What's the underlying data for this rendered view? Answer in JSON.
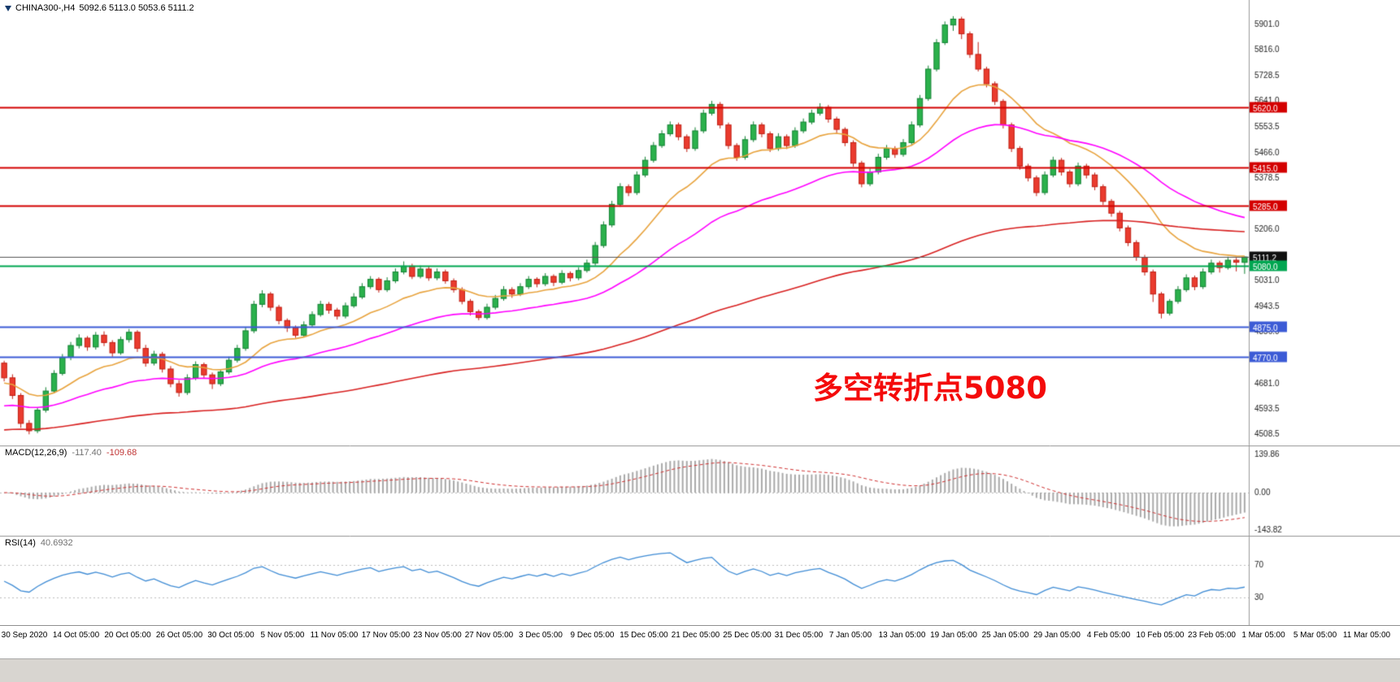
{
  "header": {
    "symbol_period": "CHINA300-,H4",
    "ohlc": "5092.6 5113.0 5053.6 5111.2"
  },
  "main": {
    "annotation_text": "多空转折点5080",
    "annotation_color": "#f40b0b"
  },
  "macd": {
    "label": "MACD(12,26,9)",
    "value_main": "-117.40",
    "value_signal": "-109.68",
    "ticks": [
      "139.86",
      "0.00",
      "-143.82"
    ]
  },
  "rsi": {
    "label": "RSI(14)",
    "value": "40.6932",
    "levels": [
      70,
      30
    ]
  },
  "time_axis": {
    "labels": [
      "30 Sep 2020",
      "14 Oct 05:00",
      "20 Oct 05:00",
      "26 Oct 05:00",
      "30 Oct 05:00",
      "5 Nov 05:00",
      "11 Nov 05:00",
      "17 Nov 05:00",
      "23 Nov 05:00",
      "27 Nov 05:00",
      "3 Dec 05:00",
      "9 Dec 05:00",
      "15 Dec 05:00",
      "21 Dec 05:00",
      "25 Dec 05:00",
      "31 Dec 05:00",
      "7 Jan 05:00",
      "13 Jan 05:00",
      "19 Jan 05:00",
      "25 Jan 05:00",
      "29 Jan 05:00",
      "4 Feb 05:00",
      "10 Feb 05:00",
      "23 Feb 05:00",
      "1 Mar 05:00",
      "5 Mar 05:00",
      "11 Mar 05:00"
    ]
  },
  "chart_data": {
    "type": "candlestick",
    "title": "CHINA300-,H4",
    "timeframe": "H4",
    "x_start": "30 Sep 2020",
    "x_end": "11 Mar 05:00",
    "ylim": [
      4470,
      5985
    ],
    "y_ticks": [
      5901.0,
      5816.0,
      5728.5,
      5641.0,
      5553.5,
      5466.0,
      5378.5,
      5206.0,
      5031.0,
      4943.5,
      4856.0,
      4681.0,
      4593.5,
      4508.5
    ],
    "levels": [
      {
        "price": 5620.0,
        "label": "5620.0",
        "color": "#d40000",
        "badge": "#d40000",
        "width": 2
      },
      {
        "price": 5415.0,
        "label": "5415.0",
        "color": "#d40000",
        "badge": "#d40000",
        "width": 2
      },
      {
        "price": 5285.0,
        "label": "5285.0",
        "color": "#d40000",
        "badge": "#d40000",
        "width": 2
      },
      {
        "price": 5111.2,
        "label": "5111.2",
        "color": "#555555",
        "badge": "#101010",
        "width": 1
      },
      {
        "price": 5080.0,
        "label": "5080.0",
        "color": "#00a651",
        "badge": "#00a651",
        "width": 2
      },
      {
        "price": 4875.0,
        "label": "4875.0",
        "color": "#3c5bd6",
        "badge": "#3c5bd6",
        "width": 2
      },
      {
        "price": 4770.0,
        "label": "4770.0",
        "color": "#3c5bd6",
        "badge": "#3c5bd6",
        "width": 2
      }
    ],
    "colors": {
      "up": "#2bb14c",
      "up_border": "#128233",
      "down": "#ea3b2e",
      "down_border": "#c01d12",
      "macd_hist": "#a9a9a9",
      "macd_signal": "#d03030",
      "rsi_line": "#3f8cd5",
      "axis_sep": "#9a9a9a"
    },
    "overlays": [
      {
        "name": "ma-fast",
        "period": 16,
        "seed": 4680,
        "color": "#e8a33d"
      },
      {
        "name": "ma-mid",
        "period": 40,
        "seed": 4600,
        "color": "#ff00ff"
      },
      {
        "name": "ma-slow",
        "period": 130,
        "seed": 4520,
        "color": "#d82020"
      }
    ],
    "indicators": [
      {
        "type": "MACD",
        "params": [
          12,
          26,
          9
        ],
        "display": "-117.40 -109.68",
        "ylim": [
          -143.82,
          139.86
        ]
      },
      {
        "type": "RSI",
        "params": [
          14
        ],
        "display": "40.6932",
        "levels": [
          30,
          70
        ]
      }
    ],
    "candles": [
      [
        4750,
        4758,
        4688,
        4700
      ],
      [
        4700,
        4712,
        4628,
        4640
      ],
      [
        4640,
        4648,
        4530,
        4545
      ],
      [
        4545,
        4556,
        4508,
        4520
      ],
      [
        4520,
        4598,
        4512,
        4590
      ],
      [
        4590,
        4668,
        4582,
        4655
      ],
      [
        4655,
        4726,
        4648,
        4715
      ],
      [
        4715,
        4781,
        4708,
        4770
      ],
      [
        4770,
        4822,
        4760,
        4810
      ],
      [
        4810,
        4848,
        4800,
        4835
      ],
      [
        4835,
        4842,
        4792,
        4805
      ],
      [
        4805,
        4856,
        4796,
        4845
      ],
      [
        4845,
        4858,
        4808,
        4820
      ],
      [
        4820,
        4828,
        4772,
        4785
      ],
      [
        4785,
        4840,
        4778,
        4830
      ],
      [
        4830,
        4866,
        4820,
        4855
      ],
      [
        4855,
        4862,
        4788,
        4800
      ],
      [
        4800,
        4812,
        4738,
        4750
      ],
      [
        4750,
        4792,
        4742,
        4780
      ],
      [
        4780,
        4788,
        4718,
        4730
      ],
      [
        4730,
        4740,
        4668,
        4680
      ],
      [
        4680,
        4692,
        4636,
        4650
      ],
      [
        4650,
        4712,
        4642,
        4700
      ],
      [
        4700,
        4756,
        4692,
        4745
      ],
      [
        4745,
        4752,
        4698,
        4710
      ],
      [
        4710,
        4718,
        4662,
        4680
      ],
      [
        4680,
        4730,
        4672,
        4720
      ],
      [
        4720,
        4772,
        4712,
        4760
      ],
      [
        4760,
        4812,
        4752,
        4800
      ],
      [
        4800,
        4872,
        4792,
        4860
      ],
      [
        4860,
        4962,
        4852,
        4950
      ],
      [
        4950,
        4998,
        4940,
        4985
      ],
      [
        4985,
        4992,
        4928,
        4940
      ],
      [
        4940,
        4948,
        4882,
        4895
      ],
      [
        4895,
        4902,
        4856,
        4870
      ],
      [
        4870,
        4878,
        4836,
        4845
      ],
      [
        4845,
        4892,
        4838,
        4880
      ],
      [
        4880,
        4926,
        4872,
        4915
      ],
      [
        4915,
        4962,
        4908,
        4950
      ],
      [
        4950,
        4958,
        4918,
        4930
      ],
      [
        4930,
        4938,
        4898,
        4910
      ],
      [
        4910,
        4956,
        4902,
        4945
      ],
      [
        4945,
        4988,
        4938,
        4975
      ],
      [
        4975,
        5022,
        4968,
        5010
      ],
      [
        5010,
        5046,
        5002,
        5035
      ],
      [
        5035,
        5042,
        4990,
        5000
      ],
      [
        5000,
        5042,
        4992,
        5030
      ],
      [
        5030,
        5072,
        5022,
        5060
      ],
      [
        5060,
        5096,
        5052,
        5080
      ],
      [
        5080,
        5088,
        5036,
        5045
      ],
      [
        5045,
        5082,
        5038,
        5070
      ],
      [
        5070,
        5078,
        5030,
        5040
      ],
      [
        5040,
        5072,
        5032,
        5060
      ],
      [
        5060,
        5068,
        5020,
        5030
      ],
      [
        5030,
        5038,
        4990,
        5000
      ],
      [
        5000,
        5008,
        4950,
        4960
      ],
      [
        4960,
        4968,
        4912,
        4925
      ],
      [
        4925,
        4932,
        4896,
        4905
      ],
      [
        4905,
        4952,
        4898,
        4940
      ],
      [
        4940,
        4982,
        4932,
        4970
      ],
      [
        4970,
        5012,
        4962,
        5000
      ],
      [
        5000,
        5008,
        4972,
        4985
      ],
      [
        4985,
        5022,
        4978,
        5010
      ],
      [
        5010,
        5046,
        5002,
        5035
      ],
      [
        5035,
        5042,
        5008,
        5020
      ],
      [
        5020,
        5056,
        5012,
        5045
      ],
      [
        5045,
        5052,
        5012,
        5025
      ],
      [
        5025,
        5066,
        5018,
        5055
      ],
      [
        5055,
        5062,
        5028,
        5040
      ],
      [
        5040,
        5076,
        5032,
        5065
      ],
      [
        5065,
        5102,
        5058,
        5090
      ],
      [
        5090,
        5162,
        5082,
        5150
      ],
      [
        5150,
        5232,
        5142,
        5220
      ],
      [
        5220,
        5302,
        5212,
        5290
      ],
      [
        5290,
        5362,
        5282,
        5350
      ],
      [
        5350,
        5358,
        5318,
        5330
      ],
      [
        5330,
        5402,
        5322,
        5390
      ],
      [
        5390,
        5452,
        5382,
        5440
      ],
      [
        5440,
        5502,
        5432,
        5490
      ],
      [
        5490,
        5542,
        5482,
        5530
      ],
      [
        5530,
        5572,
        5522,
        5560
      ],
      [
        5560,
        5568,
        5508,
        5520
      ],
      [
        5520,
        5528,
        5468,
        5480
      ],
      [
        5480,
        5552,
        5472,
        5540
      ],
      [
        5540,
        5612,
        5532,
        5600
      ],
      [
        5600,
        5642,
        5592,
        5630
      ],
      [
        5630,
        5638,
        5548,
        5560
      ],
      [
        5560,
        5568,
        5478,
        5490
      ],
      [
        5490,
        5498,
        5438,
        5450
      ],
      [
        5450,
        5522,
        5442,
        5510
      ],
      [
        5510,
        5572,
        5502,
        5560
      ],
      [
        5560,
        5568,
        5518,
        5530
      ],
      [
        5530,
        5538,
        5468,
        5480
      ],
      [
        5480,
        5532,
        5472,
        5520
      ],
      [
        5520,
        5528,
        5478,
        5490
      ],
      [
        5490,
        5552,
        5482,
        5540
      ],
      [
        5540,
        5582,
        5532,
        5570
      ],
      [
        5570,
        5612,
        5562,
        5600
      ],
      [
        5600,
        5634,
        5592,
        5620
      ],
      [
        5620,
        5628,
        5568,
        5580
      ],
      [
        5580,
        5588,
        5532,
        5545
      ],
      [
        5545,
        5552,
        5488,
        5500
      ],
      [
        5500,
        5508,
        5418,
        5430
      ],
      [
        5430,
        5438,
        5348,
        5360
      ],
      [
        5360,
        5412,
        5352,
        5400
      ],
      [
        5400,
        5462,
        5392,
        5450
      ],
      [
        5450,
        5492,
        5442,
        5480
      ],
      [
        5480,
        5488,
        5448,
        5460
      ],
      [
        5460,
        5512,
        5452,
        5500
      ],
      [
        5500,
        5572,
        5492,
        5560
      ],
      [
        5560,
        5662,
        5552,
        5650
      ],
      [
        5650,
        5762,
        5642,
        5750
      ],
      [
        5750,
        5852,
        5742,
        5840
      ],
      [
        5840,
        5912,
        5832,
        5900
      ],
      [
        5900,
        5930,
        5880,
        5920
      ],
      [
        5920,
        5928,
        5852,
        5870
      ],
      [
        5870,
        5878,
        5788,
        5800
      ],
      [
        5800,
        5842,
        5742,
        5750
      ],
      [
        5750,
        5758,
        5688,
        5700
      ],
      [
        5700,
        5708,
        5628,
        5640
      ],
      [
        5640,
        5648,
        5548,
        5560
      ],
      [
        5560,
        5568,
        5468,
        5480
      ],
      [
        5480,
        5488,
        5408,
        5420
      ],
      [
        5420,
        5428,
        5368,
        5380
      ],
      [
        5380,
        5388,
        5318,
        5330
      ],
      [
        5330,
        5402,
        5322,
        5390
      ],
      [
        5390,
        5452,
        5382,
        5440
      ],
      [
        5440,
        5448,
        5388,
        5400
      ],
      [
        5400,
        5408,
        5348,
        5360
      ],
      [
        5360,
        5432,
        5352,
        5420
      ],
      [
        5420,
        5428,
        5378,
        5390
      ],
      [
        5390,
        5398,
        5338,
        5350
      ],
      [
        5350,
        5358,
        5288,
        5300
      ],
      [
        5300,
        5308,
        5248,
        5260
      ],
      [
        5260,
        5268,
        5198,
        5210
      ],
      [
        5210,
        5218,
        5148,
        5160
      ],
      [
        5160,
        5168,
        5098,
        5110
      ],
      [
        5110,
        5118,
        5048,
        5060
      ],
      [
        5060,
        5068,
        4958,
        4985
      ],
      [
        4985,
        4992,
        4902,
        4920
      ],
      [
        4920,
        4968,
        4912,
        4960
      ],
      [
        4960,
        5012,
        4952,
        5000
      ],
      [
        5000,
        5052,
        4992,
        5040
      ],
      [
        5040,
        5048,
        4998,
        5010
      ],
      [
        5010,
        5072,
        5002,
        5060
      ],
      [
        5060,
        5102,
        5052,
        5090
      ],
      [
        5090,
        5098,
        5058,
        5075
      ],
      [
        5075,
        5112,
        5068,
        5100
      ],
      [
        5100,
        5108,
        5062,
        5093
      ],
      [
        5092.6,
        5113.0,
        5053.6,
        5111.2
      ]
    ]
  }
}
